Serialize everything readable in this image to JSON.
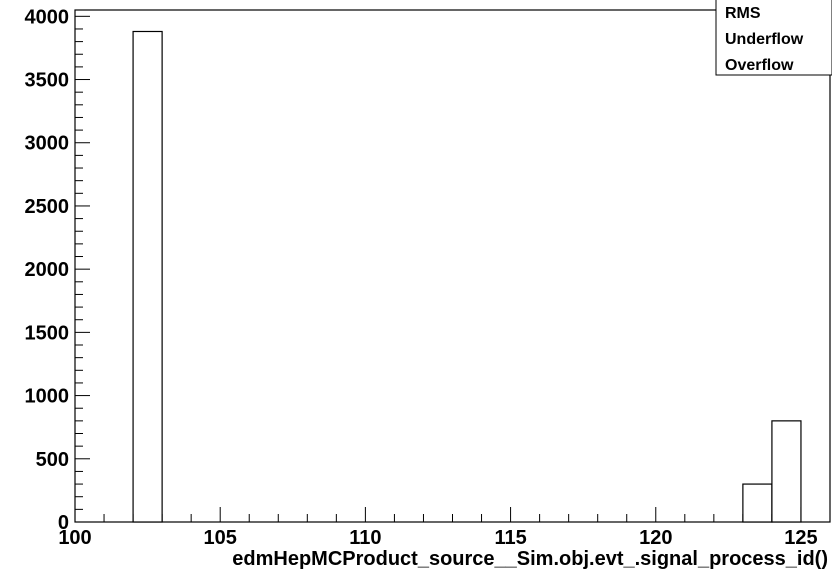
{
  "chart_data": {
    "type": "bar",
    "title": "",
    "xlabel": "edmHepMCProduct_source__Sim.obj.evt_.signal_process_id()",
    "ylabel": "",
    "xlim": [
      100,
      126
    ],
    "ylim": [
      0,
      4050
    ],
    "x_ticks": [
      100,
      105,
      110,
      115,
      120,
      125
    ],
    "y_ticks": [
      0,
      500,
      1000,
      1500,
      2000,
      2500,
      3000,
      3500,
      4000
    ],
    "bins": [
      {
        "low": 102,
        "high": 103,
        "value": 3880
      },
      {
        "low": 123,
        "high": 124,
        "value": 300
      },
      {
        "low": 124,
        "high": 125,
        "value": 800
      }
    ],
    "stats_box": [
      "RMS",
      "Underflow",
      "Overflow"
    ],
    "grid": false,
    "bar_fill": "#ffffff",
    "bar_stroke": "#000000"
  }
}
